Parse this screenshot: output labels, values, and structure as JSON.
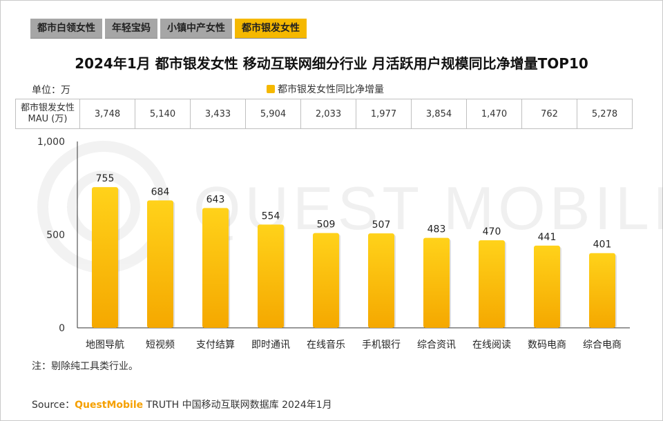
{
  "tabs": [
    {
      "label": "都市白领女性",
      "active": false
    },
    {
      "label": "年轻宝妈",
      "active": false
    },
    {
      "label": "小镇中产女性",
      "active": false
    },
    {
      "label": "都市银发女性",
      "active": true
    }
  ],
  "title": "2024年1月 都市银发女性 移动互联网细分行业 月活跃用户规模同比净增量TOP10",
  "unit_label": "单位：万",
  "legend_label": "都市银发女性同比净增量",
  "mau_header": "都市银发女性\nMAU (万)",
  "mau_values": [
    "3,748",
    "5,140",
    "3,433",
    "5,904",
    "2,033",
    "1,977",
    "3,854",
    "1,470",
    "762",
    "5,278"
  ],
  "watermark": "QUEST MOBILE",
  "note": "注：剔除纯工具类行业。",
  "source": {
    "prefix": "Source：",
    "brand": "QuestMobile",
    "rest": " TRUTH 中国移动互联网数据库 2024年1月"
  },
  "colors": {
    "bar_top": "#ffd21a",
    "bar_bottom": "#f5a800",
    "active_tab": "#f5b800",
    "inactive_tab": "#a6a6a6"
  },
  "chart_data": {
    "type": "bar",
    "categories": [
      "地图导航",
      "短视频",
      "支付结算",
      "即时通讯",
      "在线音乐",
      "手机银行",
      "综合资讯",
      "在线阅读",
      "数码电商",
      "综合电商"
    ],
    "series": [
      {
        "name": "都市银发女性同比净增量",
        "values": [
          755,
          684,
          643,
          554,
          509,
          507,
          483,
          470,
          441,
          401
        ]
      }
    ],
    "ylim": [
      0,
      1000
    ],
    "yticks": [
      0,
      500,
      1000
    ],
    "ytick_labels": [
      "0",
      "500",
      "1,000"
    ],
    "grid": false,
    "legend_position": "top-center"
  }
}
